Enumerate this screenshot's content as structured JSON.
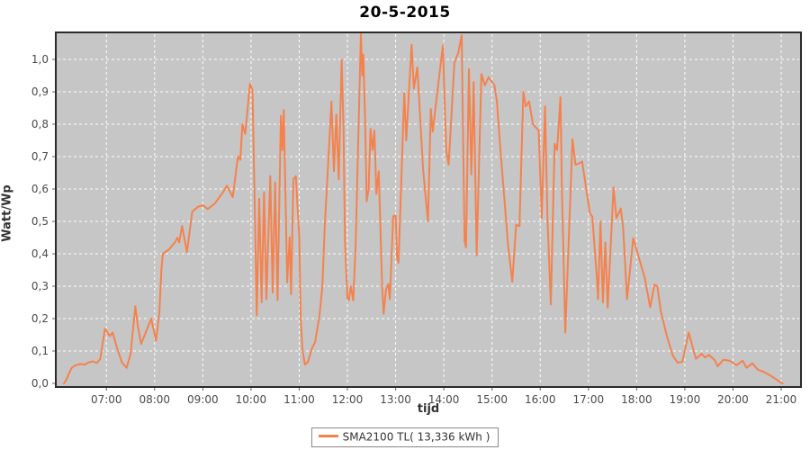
{
  "title": "20-5-2015",
  "x_axis": {
    "label": "tijd",
    "tick_hours": [
      7,
      8,
      9,
      10,
      11,
      12,
      13,
      14,
      15,
      16,
      17,
      18,
      19,
      20,
      21
    ],
    "tick_labels": [
      "07:00",
      "08:00",
      "09:00",
      "10:00",
      "11:00",
      "12:00",
      "13:00",
      "14:00",
      "15:00",
      "16:00",
      "17:00",
      "18:00",
      "19:00",
      "20:00",
      "21:00"
    ]
  },
  "y_axis": {
    "label": "Watt/Wp",
    "tick_values": [
      0,
      0.1,
      0.2,
      0.3,
      0.4,
      0.5,
      0.6,
      0.7,
      0.8,
      0.9,
      1.0
    ],
    "tick_labels": [
      "0,0",
      "0,1",
      "0,2",
      "0,3",
      "0,4",
      "0,5",
      "0,6",
      "0,7",
      "0,8",
      "0,9",
      "1,0"
    ]
  },
  "legend": {
    "label": "SMA2100 TL( 13,336 kWh )"
  },
  "colors": {
    "series": "#F4824E",
    "plot_bg": "#C6C6C6",
    "grid": "#FFFFFF",
    "border": "#2B2B2B",
    "tick": "#666666",
    "tick_text": "#4A4A4A",
    "axis_title_text": "#333333",
    "title_text": "#000000",
    "legend_border": "#888888",
    "legend_bg": "#FFFFFF",
    "page_bg": "#FFFFFF"
  },
  "chart_data": {
    "type": "line",
    "title": "20-5-2015",
    "xlabel": "tijd",
    "ylabel": "Watt/Wp",
    "xlim": [
      5.95,
      21.41
    ],
    "ylim": [
      0,
      1.08
    ],
    "grid": true,
    "legend_position": "bottom",
    "series": [
      {
        "name": "SMA2100 TL( 13,336 kWh )",
        "color": "#F4824E",
        "x_unit": "hour_of_day_decimal",
        "y_unit": "Watt/Wp",
        "points": [
          [
            6.12,
            0
          ],
          [
            6.17,
            0.012
          ],
          [
            6.22,
            0.03
          ],
          [
            6.28,
            0.048
          ],
          [
            6.35,
            0.055
          ],
          [
            6.45,
            0.06
          ],
          [
            6.55,
            0.058
          ],
          [
            6.63,
            0.065
          ],
          [
            6.72,
            0.068
          ],
          [
            6.8,
            0.063
          ],
          [
            6.87,
            0.075
          ],
          [
            6.93,
            0.13
          ],
          [
            6.97,
            0.169
          ],
          [
            7.07,
            0.146
          ],
          [
            7.13,
            0.157
          ],
          [
            7.22,
            0.11
          ],
          [
            7.32,
            0.065
          ],
          [
            7.42,
            0.048
          ],
          [
            7.5,
            0.09
          ],
          [
            7.6,
            0.238
          ],
          [
            7.65,
            0.18
          ],
          [
            7.72,
            0.122
          ],
          [
            7.85,
            0.17
          ],
          [
            7.93,
            0.2
          ],
          [
            8.03,
            0.132
          ],
          [
            8.1,
            0.22
          ],
          [
            8.14,
            0.35
          ],
          [
            8.17,
            0.4
          ],
          [
            8.3,
            0.414
          ],
          [
            8.43,
            0.437
          ],
          [
            8.47,
            0.45
          ],
          [
            8.51,
            0.435
          ],
          [
            8.57,
            0.486
          ],
          [
            8.67,
            0.405
          ],
          [
            8.78,
            0.53
          ],
          [
            8.9,
            0.545
          ],
          [
            9.0,
            0.55
          ],
          [
            9.1,
            0.538
          ],
          [
            9.25,
            0.555
          ],
          [
            9.42,
            0.59
          ],
          [
            9.5,
            0.61
          ],
          [
            9.62,
            0.575
          ],
          [
            9.73,
            0.7
          ],
          [
            9.78,
            0.69
          ],
          [
            9.82,
            0.8
          ],
          [
            9.88,
            0.77
          ],
          [
            9.98,
            0.925
          ],
          [
            10.03,
            0.905
          ],
          [
            10.07,
            0.6
          ],
          [
            10.12,
            0.21
          ],
          [
            10.17,
            0.57
          ],
          [
            10.22,
            0.25
          ],
          [
            10.27,
            0.59
          ],
          [
            10.32,
            0.26
          ],
          [
            10.4,
            0.64
          ],
          [
            10.45,
            0.28
          ],
          [
            10.5,
            0.62
          ],
          [
            10.55,
            0.257
          ],
          [
            10.62,
            0.826
          ],
          [
            10.65,
            0.72
          ],
          [
            10.68,
            0.844
          ],
          [
            10.75,
            0.312
          ],
          [
            10.8,
            0.451
          ],
          [
            10.83,
            0.275
          ],
          [
            10.88,
            0.63
          ],
          [
            10.93,
            0.64
          ],
          [
            11.0,
            0.451
          ],
          [
            11.03,
            0.2
          ],
          [
            11.07,
            0.1
          ],
          [
            11.12,
            0.058
          ],
          [
            11.18,
            0.066
          ],
          [
            11.27,
            0.11
          ],
          [
            11.33,
            0.127
          ],
          [
            11.42,
            0.21
          ],
          [
            11.48,
            0.3
          ],
          [
            11.53,
            0.49
          ],
          [
            11.58,
            0.62
          ],
          [
            11.67,
            0.87
          ],
          [
            11.72,
            0.655
          ],
          [
            11.77,
            0.83
          ],
          [
            11.82,
            0.63
          ],
          [
            11.88,
            0.999
          ],
          [
            11.92,
            0.79
          ],
          [
            11.95,
            0.44
          ],
          [
            12.0,
            0.263
          ],
          [
            12.03,
            0.256
          ],
          [
            12.07,
            0.3
          ],
          [
            12.12,
            0.256
          ],
          [
            12.17,
            0.42
          ],
          [
            12.28,
            1.078
          ],
          [
            12.31,
            0.95
          ],
          [
            12.33,
            1.015
          ],
          [
            12.37,
            0.8
          ],
          [
            12.4,
            0.562
          ],
          [
            12.44,
            0.6
          ],
          [
            12.48,
            0.785
          ],
          [
            12.52,
            0.72
          ],
          [
            12.56,
            0.78
          ],
          [
            12.6,
            0.585
          ],
          [
            12.65,
            0.655
          ],
          [
            12.72,
            0.3
          ],
          [
            12.75,
            0.215
          ],
          [
            12.8,
            0.29
          ],
          [
            12.85,
            0.307
          ],
          [
            12.88,
            0.26
          ],
          [
            12.95,
            0.516
          ],
          [
            13.0,
            0.518
          ],
          [
            13.03,
            0.386
          ],
          [
            13.06,
            0.372
          ],
          [
            13.18,
            0.897
          ],
          [
            13.22,
            0.75
          ],
          [
            13.33,
            1.045
          ],
          [
            13.38,
            0.91
          ],
          [
            13.45,
            0.976
          ],
          [
            13.57,
            0.66
          ],
          [
            13.67,
            0.5
          ],
          [
            13.73,
            0.847
          ],
          [
            13.77,
            0.777
          ],
          [
            13.85,
            0.88
          ],
          [
            13.98,
            1.043
          ],
          [
            14.05,
            0.72
          ],
          [
            14.1,
            0.675
          ],
          [
            14.22,
            0.99
          ],
          [
            14.3,
            1.02
          ],
          [
            14.37,
            1.075
          ],
          [
            14.43,
            0.44
          ],
          [
            14.46,
            0.42
          ],
          [
            14.52,
            0.97
          ],
          [
            14.57,
            0.645
          ],
          [
            14.62,
            0.93
          ],
          [
            14.68,
            0.395
          ],
          [
            14.78,
            0.955
          ],
          [
            14.85,
            0.92
          ],
          [
            14.93,
            0.945
          ],
          [
            15.05,
            0.92
          ],
          [
            15.1,
            0.87
          ],
          [
            15.17,
            0.73
          ],
          [
            15.25,
            0.58
          ],
          [
            15.33,
            0.43
          ],
          [
            15.42,
            0.314
          ],
          [
            15.5,
            0.49
          ],
          [
            15.57,
            0.485
          ],
          [
            15.65,
            0.9
          ],
          [
            15.7,
            0.855
          ],
          [
            15.77,
            0.87
          ],
          [
            15.85,
            0.8
          ],
          [
            15.97,
            0.78
          ],
          [
            16.03,
            0.51
          ],
          [
            16.1,
            0.855
          ],
          [
            16.15,
            0.51
          ],
          [
            16.22,
            0.244
          ],
          [
            16.3,
            0.74
          ],
          [
            16.35,
            0.72
          ],
          [
            16.42,
            0.883
          ],
          [
            16.45,
            0.59
          ],
          [
            16.48,
            0.41
          ],
          [
            16.52,
            0.157
          ],
          [
            16.67,
            0.754
          ],
          [
            16.73,
            0.675
          ],
          [
            16.82,
            0.68
          ],
          [
            16.87,
            0.685
          ],
          [
            17.03,
            0.525
          ],
          [
            17.08,
            0.515
          ],
          [
            17.18,
            0.315
          ],
          [
            17.2,
            0.26
          ],
          [
            17.25,
            0.5
          ],
          [
            17.3,
            0.25
          ],
          [
            17.35,
            0.435
          ],
          [
            17.4,
            0.234
          ],
          [
            17.52,
            0.605
          ],
          [
            17.58,
            0.51
          ],
          [
            17.67,
            0.54
          ],
          [
            17.72,
            0.48
          ],
          [
            17.8,
            0.26
          ],
          [
            17.93,
            0.448
          ],
          [
            18.08,
            0.37
          ],
          [
            18.17,
            0.325
          ],
          [
            18.28,
            0.235
          ],
          [
            18.37,
            0.305
          ],
          [
            18.43,
            0.3
          ],
          [
            18.5,
            0.225
          ],
          [
            18.62,
            0.15
          ],
          [
            18.75,
            0.086
          ],
          [
            18.85,
            0.064
          ],
          [
            18.95,
            0.067
          ],
          [
            19.08,
            0.157
          ],
          [
            19.23,
            0.076
          ],
          [
            19.35,
            0.091
          ],
          [
            19.42,
            0.08
          ],
          [
            19.5,
            0.088
          ],
          [
            19.62,
            0.072
          ],
          [
            19.68,
            0.053
          ],
          [
            19.8,
            0.073
          ],
          [
            19.93,
            0.07
          ],
          [
            20.07,
            0.056
          ],
          [
            20.2,
            0.07
          ],
          [
            20.28,
            0.048
          ],
          [
            20.4,
            0.062
          ],
          [
            20.52,
            0.042
          ],
          [
            20.63,
            0.036
          ],
          [
            20.73,
            0.028
          ],
          [
            20.85,
            0.017
          ],
          [
            20.97,
            0.005
          ],
          [
            21.03,
            0
          ]
        ]
      }
    ]
  }
}
